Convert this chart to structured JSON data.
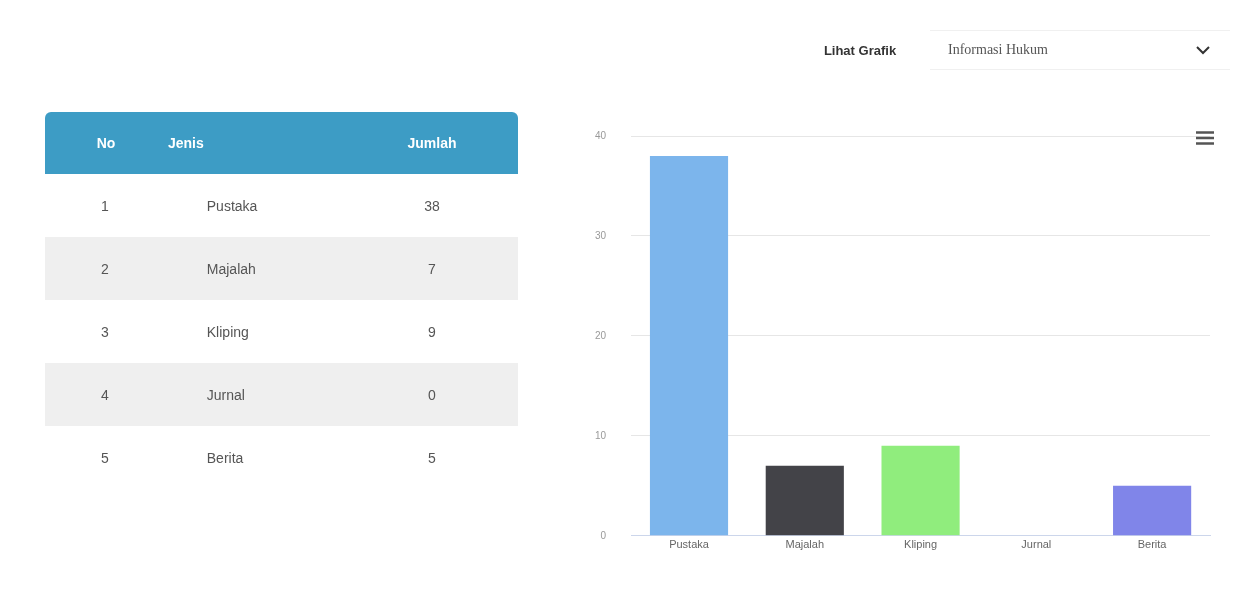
{
  "chart_data": [
    {
      "type": "other",
      "annotations": [
        "No",
        "Jenis",
        "Jumlah",
        "1",
        "Pustaka",
        "38",
        "2",
        "Majalah",
        "7",
        "3",
        "Kliping",
        "9",
        "4",
        "Jurnal",
        "0",
        "5",
        "Berita",
        "5"
      ]
    },
    {
      "type": "bar",
      "categories": [
        "Pustaka",
        "Majalah",
        "Kliping",
        "Jurnal",
        "Berita"
      ],
      "values": [
        38,
        7,
        9,
        0,
        5
      ],
      "colors": [
        "#7cb5ec",
        "#434348",
        "#90ed7d",
        "#f7a35c",
        "#8085e9"
      ],
      "ylim": [
        0,
        40
      ],
      "yticks": [
        0,
        10,
        20,
        30,
        40
      ],
      "grid": "y",
      "annotations": [
        "Lihat Grafik",
        "Informasi Hukum"
      ]
    }
  ]
}
